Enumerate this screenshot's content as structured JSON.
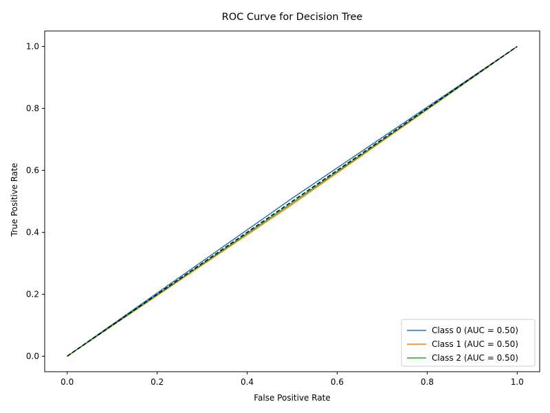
{
  "chart_data": {
    "type": "line",
    "title": "ROC Curve for Decision Tree",
    "xlabel": "False Positive Rate",
    "ylabel": "True Positive Rate",
    "xlim": [
      -0.05,
      1.05
    ],
    "ylim": [
      -0.05,
      1.05
    ],
    "xticks": [
      0.0,
      0.2,
      0.4,
      0.6,
      0.8,
      1.0
    ],
    "yticks": [
      0.0,
      0.2,
      0.4,
      0.6,
      0.8,
      1.0
    ],
    "xtick_labels": [
      "0.0",
      "0.2",
      "0.4",
      "0.6",
      "0.8",
      "1.0"
    ],
    "ytick_labels": [
      "0.0",
      "0.2",
      "0.4",
      "0.6",
      "0.8",
      "1.0"
    ],
    "grid": false,
    "legend_position": "lower-right",
    "series": [
      {
        "name": "Class 0 (AUC = 0.50)",
        "color": "#1f77b4",
        "x": [
          0.0,
          0.5,
          1.0
        ],
        "y": [
          0.0,
          0.51,
          1.0
        ]
      },
      {
        "name": "Class 1 (AUC = 0.50)",
        "color": "#ff7f0e",
        "x": [
          0.0,
          0.5,
          1.0
        ],
        "y": [
          0.0,
          0.49,
          1.0
        ]
      },
      {
        "name": "Class 2 (AUC = 0.50)",
        "color": "#2ca02c",
        "x": [
          0.0,
          0.5,
          1.0
        ],
        "y": [
          0.0,
          0.495,
          1.0
        ]
      }
    ],
    "reference_line": {
      "style": "dashed",
      "color": "#000000",
      "x": [
        0.0,
        1.0
      ],
      "y": [
        0.0,
        1.0
      ]
    }
  }
}
